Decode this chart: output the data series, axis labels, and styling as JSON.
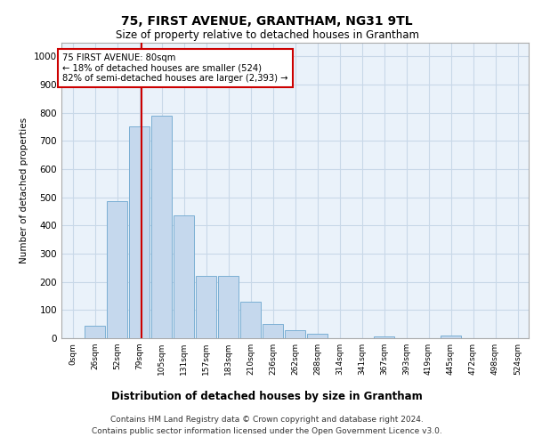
{
  "title1": "75, FIRST AVENUE, GRANTHAM, NG31 9TL",
  "title2": "Size of property relative to detached houses in Grantham",
  "xlabel": "Distribution of detached houses by size in Grantham",
  "ylabel": "Number of detached properties",
  "bar_labels": [
    "0sqm",
    "26sqm",
    "52sqm",
    "79sqm",
    "105sqm",
    "131sqm",
    "157sqm",
    "183sqm",
    "210sqm",
    "236sqm",
    "262sqm",
    "288sqm",
    "314sqm",
    "341sqm",
    "367sqm",
    "393sqm",
    "419sqm",
    "445sqm",
    "472sqm",
    "498sqm",
    "524sqm"
  ],
  "bar_values": [
    0,
    43,
    486,
    751,
    789,
    437,
    221,
    220,
    130,
    52,
    28,
    15,
    0,
    0,
    7,
    0,
    0,
    8,
    0,
    0,
    0
  ],
  "bar_color": "#c5d8ed",
  "bar_edge_color": "#7bafd4",
  "ylim": [
    0,
    1050
  ],
  "yticks": [
    0,
    100,
    200,
    300,
    400,
    500,
    600,
    700,
    800,
    900,
    1000
  ],
  "property_line_color": "#cc0000",
  "annotation_box_text": "75 FIRST AVENUE: 80sqm\n← 18% of detached houses are smaller (524)\n82% of semi-detached houses are larger (2,393) →",
  "footer1": "Contains HM Land Registry data © Crown copyright and database right 2024.",
  "footer2": "Contains public sector information licensed under the Open Government Licence v3.0.",
  "bg_color": "#ffffff",
  "grid_color": "#c8d8e8",
  "ax_facecolor": "#eaf2fa"
}
